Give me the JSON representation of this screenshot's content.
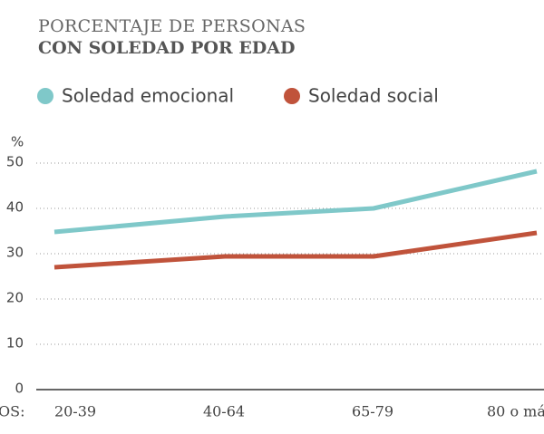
{
  "chart_data": {
    "type": "line",
    "title": "PORCENTAJE DE PERSONAS",
    "subtitle": "CON SOLEDAD POR EDAD",
    "y_label": "%",
    "x_label": "OS:",
    "categories": [
      "20-39",
      "40-64",
      "65-79",
      "80 o má"
    ],
    "series": [
      {
        "name": "Soledad emocional",
        "color": "#7fc8c9",
        "values": [
          34.8,
          38.2,
          40,
          48.2
        ]
      },
      {
        "name": "Soledad social",
        "color": "#c0533b",
        "values": [
          27,
          29.4,
          29.4,
          34.6
        ]
      }
    ],
    "ylim": [
      0,
      50
    ],
    "yticks": [
      0,
      10,
      20,
      30,
      40,
      50
    ],
    "grid": true
  }
}
